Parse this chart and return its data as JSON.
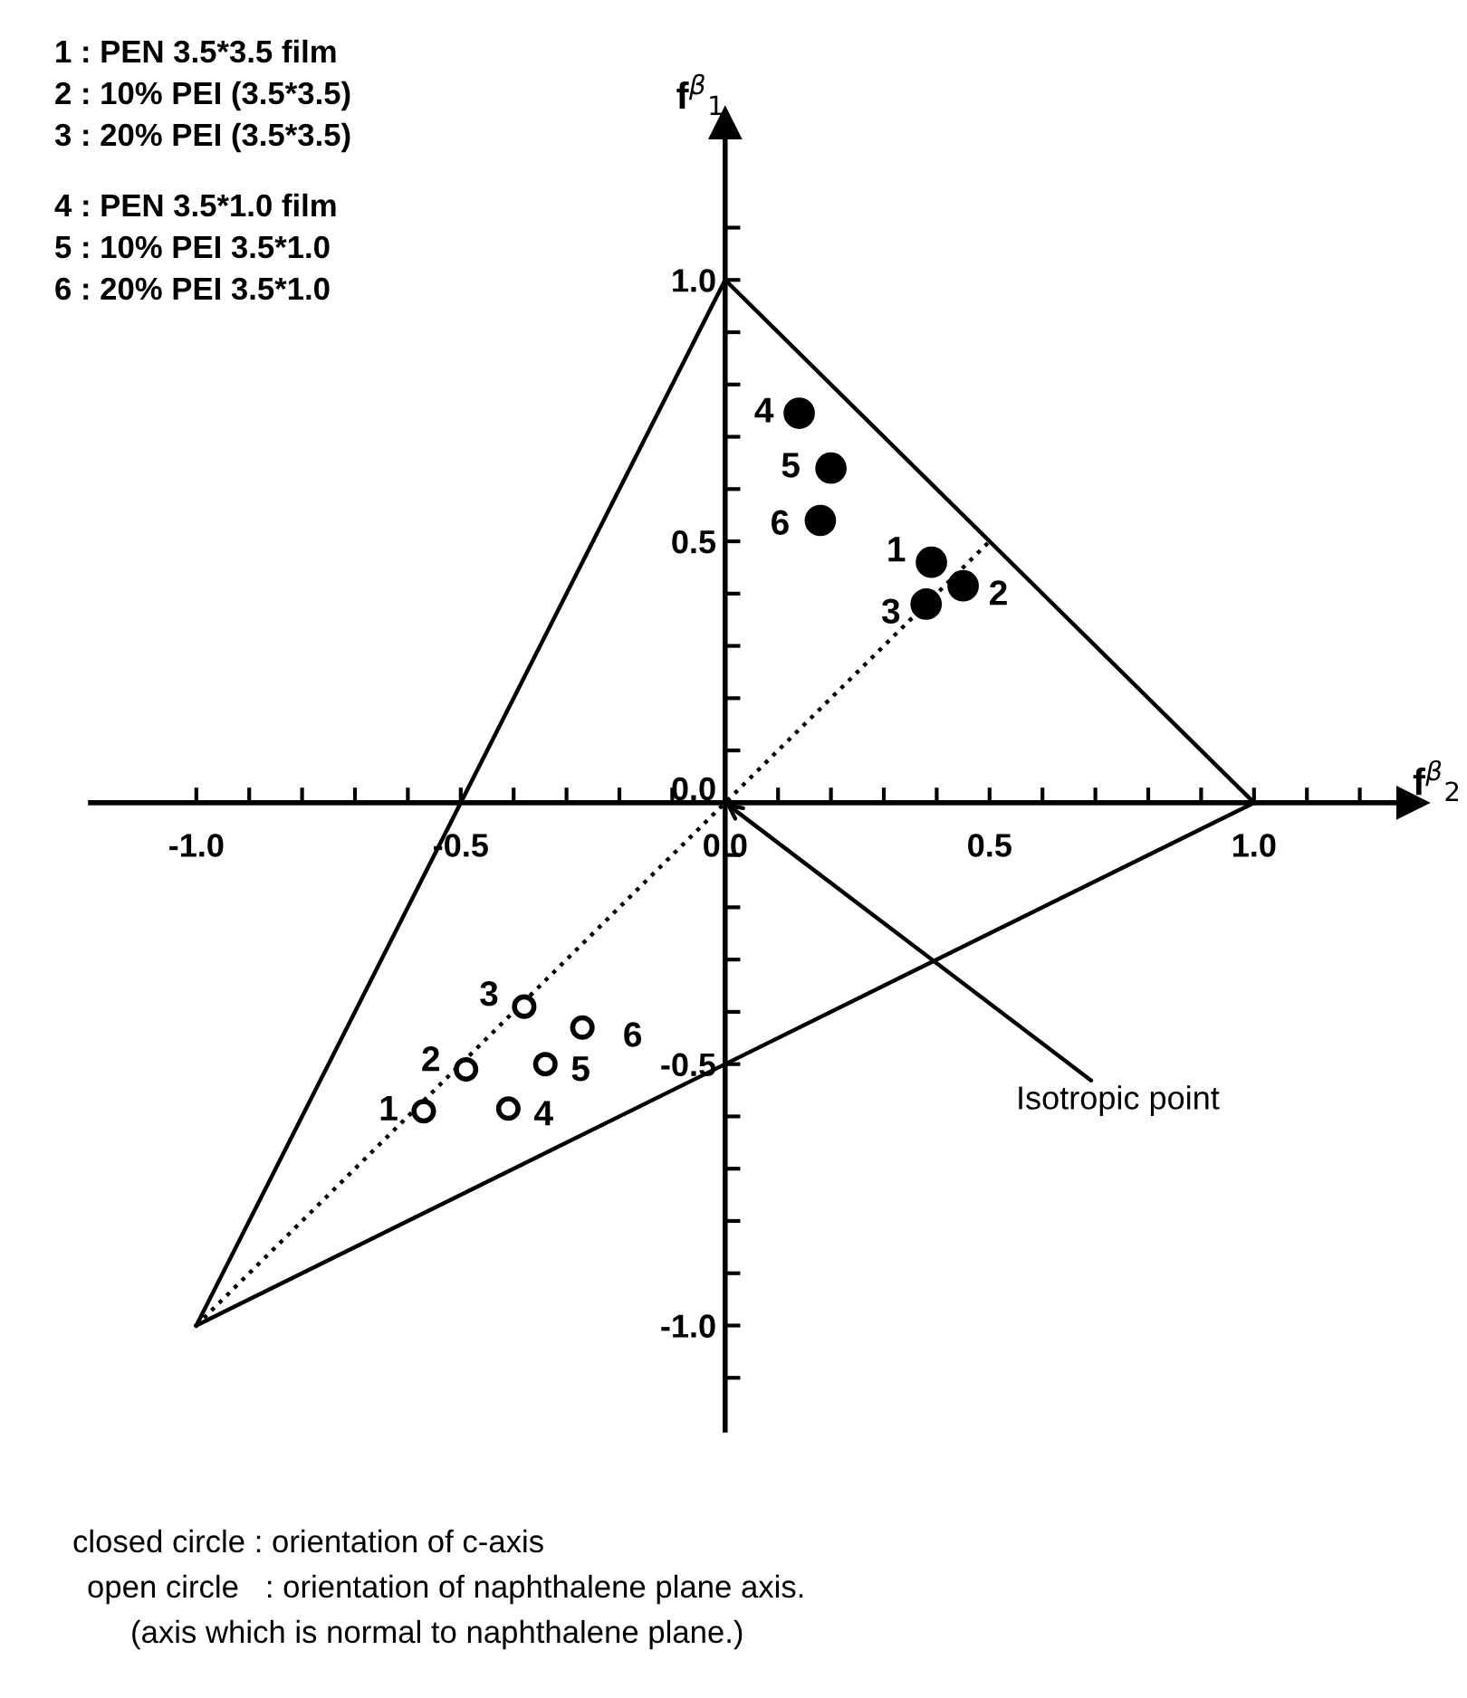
{
  "chart_data": {
    "type": "scatter",
    "xlabel": "f$^{β}$$_{2}$",
    "ylabel": "f$^{β}$$_{1}$",
    "xlim": [
      -1.2,
      1.3
    ],
    "ylim": [
      -1.2,
      1.3
    ],
    "xticks": [
      {
        "value": -1.0,
        "label": "-1.0"
      },
      {
        "value": -0.9,
        "label": null
      },
      {
        "value": -0.8,
        "label": null
      },
      {
        "value": -0.7,
        "label": null
      },
      {
        "value": -0.6,
        "label": null
      },
      {
        "value": -0.5,
        "label": "-0.5"
      },
      {
        "value": -0.4,
        "label": null
      },
      {
        "value": -0.3,
        "label": null
      },
      {
        "value": -0.2,
        "label": null
      },
      {
        "value": -0.1,
        "label": null
      },
      {
        "value": 0.0,
        "label": "0.0"
      },
      {
        "value": 0.1,
        "label": null
      },
      {
        "value": 0.2,
        "label": null
      },
      {
        "value": 0.3,
        "label": null
      },
      {
        "value": 0.4,
        "label": null
      },
      {
        "value": 0.5,
        "label": "0.5"
      },
      {
        "value": 0.6,
        "label": null
      },
      {
        "value": 0.7,
        "label": null
      },
      {
        "value": 0.8,
        "label": null
      },
      {
        "value": 0.9,
        "label": null
      },
      {
        "value": 1.0,
        "label": "1.0"
      },
      {
        "value": 1.1,
        "label": null
      },
      {
        "value": 1.2,
        "label": null
      }
    ],
    "yticks": [
      {
        "value": -1.1,
        "label": null
      },
      {
        "value": -1.0,
        "label": "-1.0"
      },
      {
        "value": -0.9,
        "label": null
      },
      {
        "value": -0.8,
        "label": null
      },
      {
        "value": -0.7,
        "label": null
      },
      {
        "value": -0.6,
        "label": null
      },
      {
        "value": -0.5,
        "label": "-0.5"
      },
      {
        "value": -0.4,
        "label": null
      },
      {
        "value": -0.3,
        "label": null
      },
      {
        "value": -0.2,
        "label": null
      },
      {
        "value": -0.1,
        "label": null
      },
      {
        "value": 0.0,
        "label": "0.0"
      },
      {
        "value": 0.1,
        "label": null
      },
      {
        "value": 0.2,
        "label": null
      },
      {
        "value": 0.3,
        "label": null
      },
      {
        "value": 0.4,
        "label": null
      },
      {
        "value": 0.5,
        "label": "0.5"
      },
      {
        "value": 0.6,
        "label": null
      },
      {
        "value": 0.7,
        "label": null
      },
      {
        "value": 0.8,
        "label": null
      },
      {
        "value": 0.9,
        "label": null
      },
      {
        "value": 1.0,
        "label": "1.0"
      },
      {
        "value": 1.1,
        "label": null
      }
    ],
    "series": [
      {
        "type": "line",
        "color": "#000000",
        "line_style": "solid",
        "marker": "none",
        "x": [
          0,
          1
        ],
        "values": [
          1,
          0
        ]
      },
      {
        "type": "line",
        "color": "#000000",
        "line_style": "solid",
        "marker": "none",
        "x": [
          -1,
          1
        ],
        "values": [
          -1,
          0
        ]
      },
      {
        "type": "line",
        "color": "#000000",
        "line_style": "solid",
        "marker": "none",
        "x": [
          -1,
          0
        ],
        "values": [
          -1,
          1
        ]
      },
      {
        "type": "line",
        "color": "#000000",
        "line_style": "dotted",
        "marker": "none",
        "x": [
          -1,
          0.5
        ],
        "values": [
          -1,
          0.5
        ]
      },
      {
        "color": "#000000",
        "marker": "circle",
        "x": [
          0.39,
          0.45,
          0.38,
          0.14,
          0.2,
          0.18
        ],
        "values": [
          0.46,
          0.415,
          0.38,
          0.745,
          0.64,
          0.54
        ]
      },
      {
        "color": "#000000",
        "marker": "circle",
        "x": [
          -0.57,
          -0.49,
          -0.38,
          -0.41,
          -0.34,
          -0.27
        ],
        "values": [
          -0.59,
          -0.51,
          -0.39,
          -0.585,
          -0.5,
          -0.43
        ]
      }
    ],
    "annotations": [
      "1 : PEN 3.5*3.5 film",
      "2 : 10% PEI (3.5*3.5)",
      "3 : 20% PEI (3.5*3.5)",
      "4 : PEN 3.5*1.0 film",
      "5 : 10% PEI 3.5*1.0",
      "6 : 20% PEI 3.5*1.0",
      "closed circle : orientation of c-axis",
      "open circle   : orientation of naphthalene plane axis.",
      "(axis which is normal to naphthalene plane.)",
      {
        "text": "Isotropic point",
        "x": 0,
        "y": 0
      },
      {
        "text": "1",
        "x": 0.39,
        "y": 0.46
      },
      {
        "text": "2",
        "x": 0.45,
        "y": 0.415
      },
      {
        "text": "3",
        "x": 0.38,
        "y": 0.38
      },
      {
        "text": "4",
        "x": 0.14,
        "y": 0.745
      },
      {
        "text": "5",
        "x": 0.2,
        "y": 0.64
      },
      {
        "text": "6",
        "x": 0.18,
        "y": 0.54
      },
      {
        "text": "1",
        "x": -0.57,
        "y": -0.59
      },
      {
        "text": "2",
        "x": -0.49,
        "y": -0.51
      },
      {
        "text": "3",
        "x": -0.38,
        "y": -0.39
      },
      {
        "text": "4",
        "x": -0.41,
        "y": -0.585
      },
      {
        "text": "5",
        "x": -0.34,
        "y": -0.5
      },
      {
        "text": "6",
        "x": -0.27,
        "y": -0.43
      }
    ],
    "grid": false,
    "legend": false
  }
}
